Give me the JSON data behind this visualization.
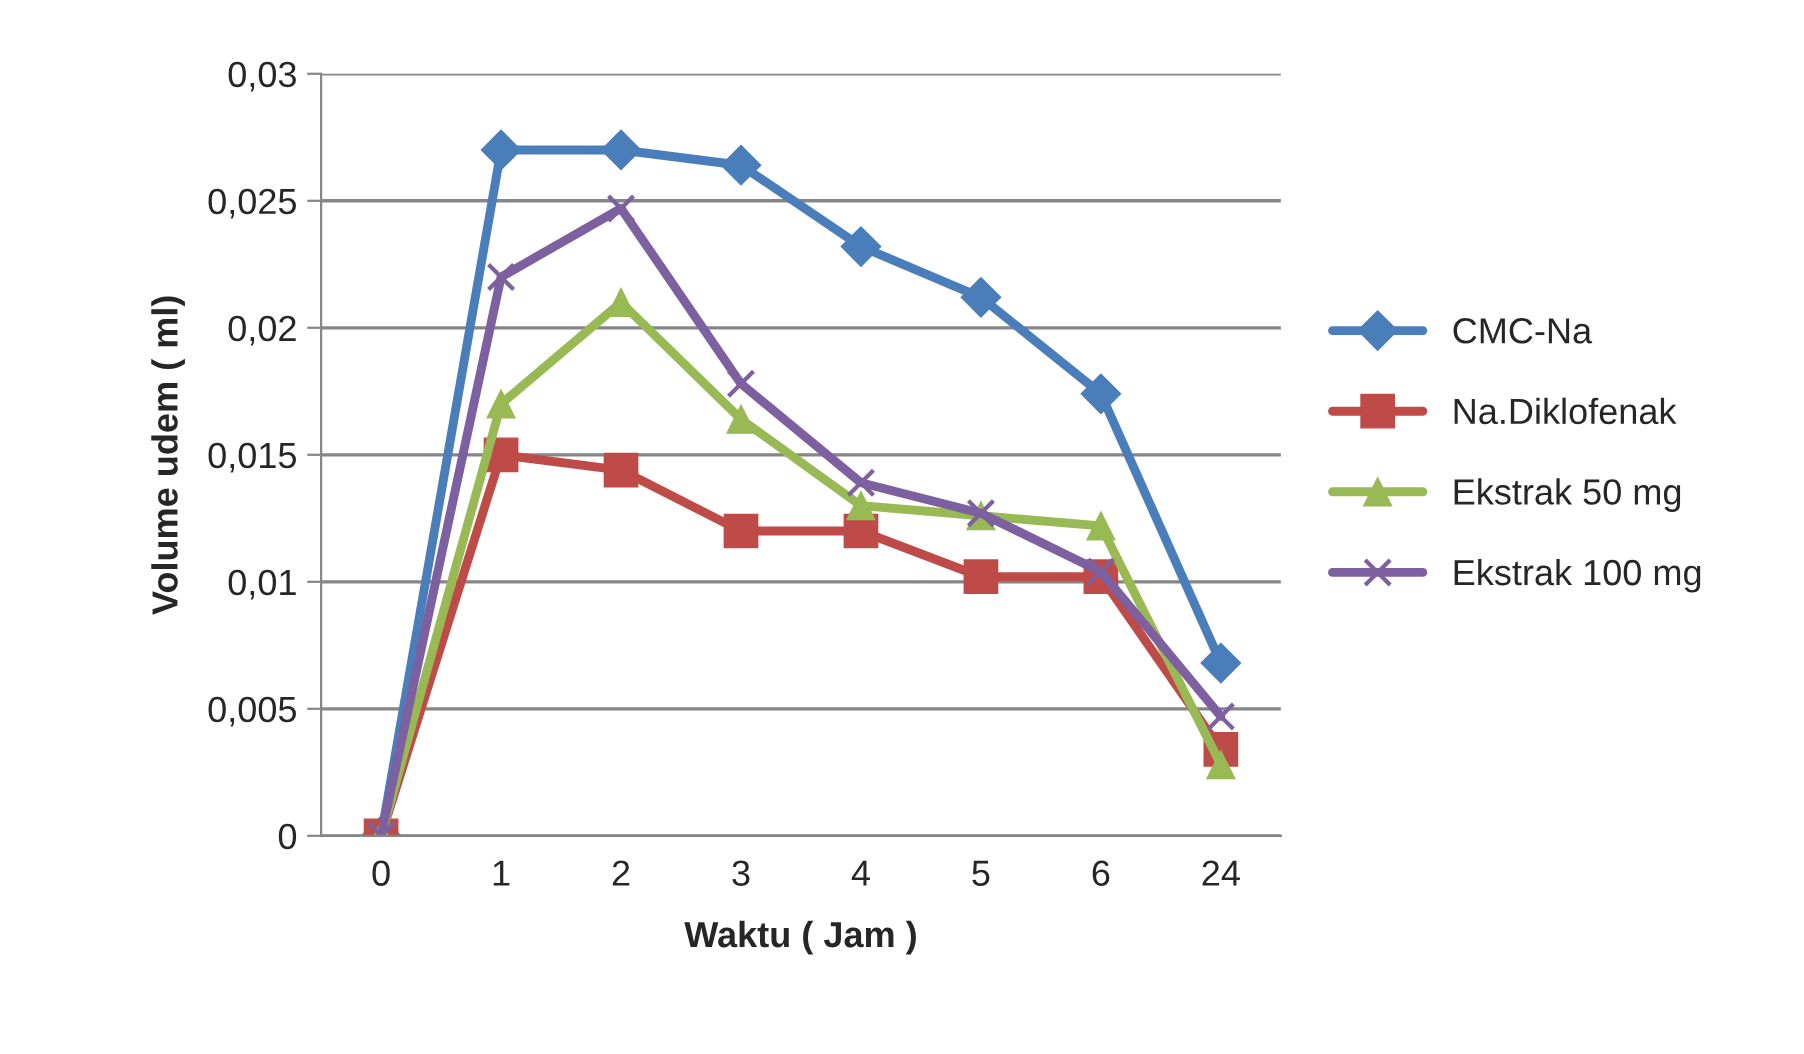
{
  "chart_data": {
    "type": "line",
    "xlabel": "Waktu ( Jam )",
    "ylabel": "Volume udem ( ml)",
    "categories": [
      "0",
      "1",
      "2",
      "3",
      "4",
      "5",
      "6",
      "24"
    ],
    "series": [
      {
        "name": "CMC-Na",
        "color": "#4a7ebb",
        "marker": "diamond",
        "values": [
          0,
          0.027,
          0.027,
          0.0264,
          0.0232,
          0.0212,
          0.0174,
          0.0068
        ]
      },
      {
        "name": "Na.Diklofenak",
        "color": "#be4b48",
        "marker": "square",
        "values": [
          0,
          0.015,
          0.0144,
          0.012,
          0.012,
          0.0102,
          0.0102,
          0.0034
        ]
      },
      {
        "name": "Ekstrak 50 mg",
        "color": "#98b954",
        "marker": "triangle",
        "values": [
          0,
          0.017,
          0.021,
          0.0164,
          0.013,
          0.0126,
          0.0122,
          0.0028
        ]
      },
      {
        "name": "Ekstrak 100 mg",
        "color": "#7d60a0",
        "marker": "cross",
        "values": [
          0,
          0.022,
          0.0247,
          0.0178,
          0.0139,
          0.0127,
          0.0104,
          0.0047
        ]
      }
    ],
    "ylim": [
      0,
      0.03
    ],
    "yticks": [
      {
        "value": 0,
        "label": "0"
      },
      {
        "value": 0.005,
        "label": "0,005"
      },
      {
        "value": 0.01,
        "label": "0,01"
      },
      {
        "value": 0.015,
        "label": "0,015"
      },
      {
        "value": 0.02,
        "label": "0,02"
      },
      {
        "value": 0.025,
        "label": "0,025"
      },
      {
        "value": 0.03,
        "label": "0,03"
      }
    ],
    "grid": "y",
    "legend": "right",
    "line_style": "solid"
  }
}
